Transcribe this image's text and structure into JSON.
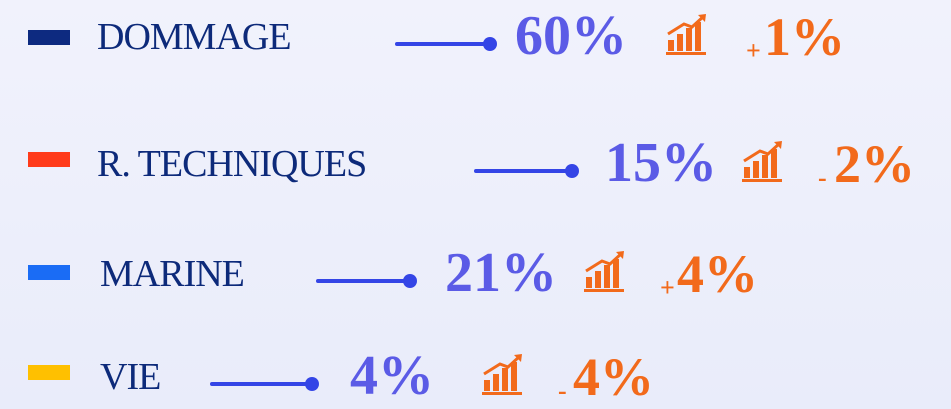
{
  "items": [
    {
      "label": "DOMMAGE",
      "color": "#0d2a80",
      "share": "60%",
      "change_sign": "+",
      "change": "1%"
    },
    {
      "label": "R. TECHNIQUES",
      "color": "#ff3b1a",
      "share": "15%",
      "change_sign": "-",
      "change": "2%"
    },
    {
      "label": "MARINE",
      "color": "#1a6cf5",
      "share": "21%",
      "change_sign": "+",
      "change": "4%"
    },
    {
      "label": "VIE",
      "color": "#ffc000",
      "share": "4%",
      "change_sign": "-",
      "change": "4%"
    }
  ]
}
